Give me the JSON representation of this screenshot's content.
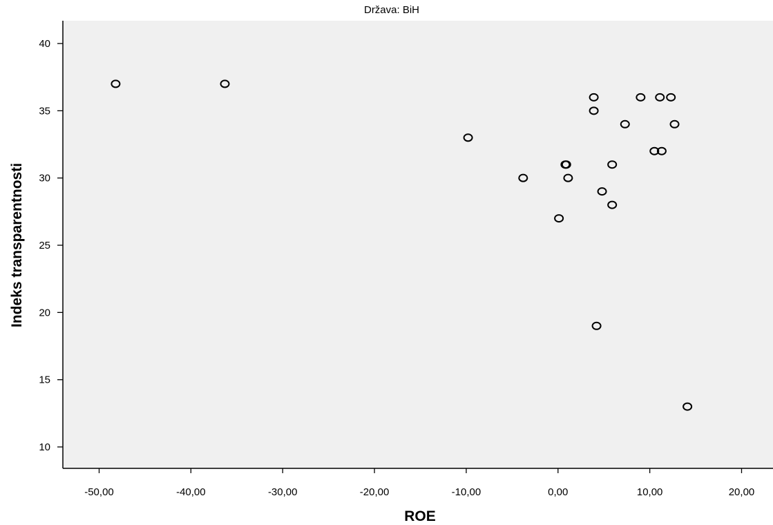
{
  "chart_data": {
    "type": "scatter",
    "title": "Država: BiH",
    "xlabel": "ROE",
    "ylabel": "Indeks transparentnosti",
    "xlim": [
      -54,
      23
    ],
    "ylim": [
      8.3,
      41.5
    ],
    "xticks": [
      -50,
      -40,
      -30,
      -20,
      -10,
      0,
      10,
      20
    ],
    "xtick_labels": [
      "-50,00",
      "-40,00",
      "-30,00",
      "-20,00",
      "-10,00",
      "0,00",
      "10,00",
      "20,00"
    ],
    "yticks": [
      10,
      15,
      20,
      25,
      30,
      35,
      40
    ],
    "ytick_labels": [
      "10",
      "15",
      "20",
      "25",
      "30",
      "35",
      "40"
    ],
    "grid": false,
    "plot_background": "#f0f0f0",
    "marker": "open-circle",
    "points": [
      {
        "x": -48.2,
        "y": 37
      },
      {
        "x": -36.3,
        "y": 37
      },
      {
        "x": -9.8,
        "y": 33
      },
      {
        "x": -3.8,
        "y": 30
      },
      {
        "x": 0.1,
        "y": 27
      },
      {
        "x": 0.8,
        "y": 31
      },
      {
        "x": 0.9,
        "y": 31
      },
      {
        "x": 1.1,
        "y": 30
      },
      {
        "x": 3.9,
        "y": 36
      },
      {
        "x": 3.9,
        "y": 35
      },
      {
        "x": 4.2,
        "y": 19
      },
      {
        "x": 4.8,
        "y": 29
      },
      {
        "x": 5.9,
        "y": 31
      },
      {
        "x": 5.9,
        "y": 28
      },
      {
        "x": 7.3,
        "y": 34
      },
      {
        "x": 9.0,
        "y": 36
      },
      {
        "x": 10.5,
        "y": 32
      },
      {
        "x": 11.1,
        "y": 36
      },
      {
        "x": 11.3,
        "y": 32
      },
      {
        "x": 12.3,
        "y": 36
      },
      {
        "x": 12.7,
        "y": 34
      },
      {
        "x": 14.1,
        "y": 13
      }
    ]
  }
}
